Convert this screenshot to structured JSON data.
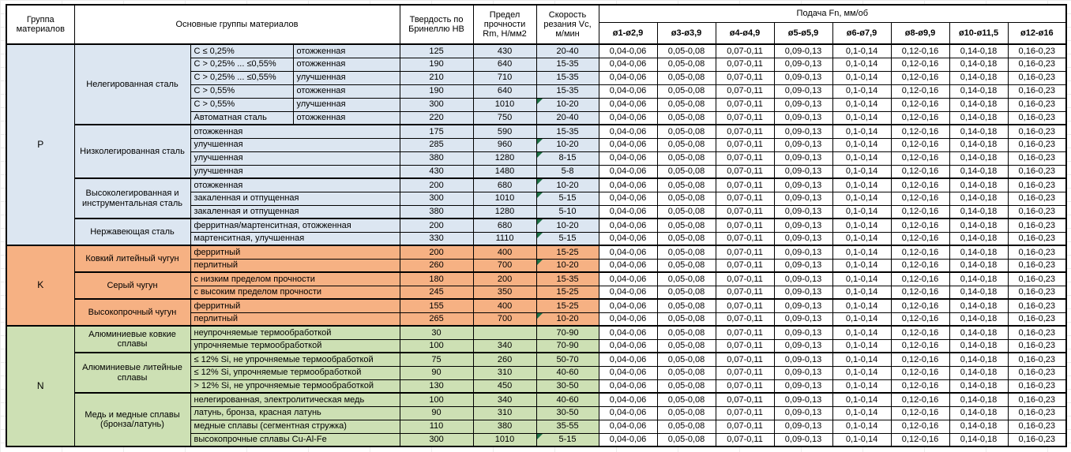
{
  "header": {
    "col_group": "Группа материалов",
    "col_main_groups": "Основные группы материалов",
    "col_hardness": "Твердость по Бринеллю HB",
    "col_strength": "Предел прочности Rm, Н/мм2",
    "col_speed": "Скорость резания Vc, м/мин",
    "feed_title": "Подача Fn, мм/об",
    "feed_columns": [
      "ø1-ø2,9",
      "ø3-ø3,9",
      "ø4-ø4,9",
      "ø5-ø5,9",
      "ø6-ø7,9",
      "ø8-ø9,9",
      "ø10-ø11,5",
      "ø12-ø16"
    ]
  },
  "feed_values": [
    "0,04-0,06",
    "0,05-0,08",
    "0,07-0,11",
    "0,09-0,13",
    "0,1-0,14",
    "0,12-0,16",
    "0,14-0,18",
    "0,16-0,23"
  ],
  "colors": {
    "section_p": "#dce6f1",
    "section_k": "#f6b183",
    "section_n": "#cde0b4",
    "note_indicator": "#1e7145",
    "grid_border": "#000000"
  },
  "sections": [
    {
      "code": "P",
      "color": "#dce6f1",
      "groups": [
        {
          "name": "Нелегированная сталь",
          "rows": [
            {
              "sub1": "C ≤ 0,25%",
              "sub2": "отожженная",
              "hb": "125",
              "rm": "430",
              "vc": "20-40",
              "note": false
            },
            {
              "sub1": "C > 0,25% ... ≤0,55%",
              "sub2": "отожженная",
              "hb": "190",
              "rm": "640",
              "vc": "15-35",
              "note": false
            },
            {
              "sub1": "C > 0,25% ... ≤0,55%",
              "sub2": "улучшенная",
              "hb": "210",
              "rm": "710",
              "vc": "15-35",
              "note": false
            },
            {
              "sub1": "C > 0,55%",
              "sub2": "отожженная",
              "hb": "190",
              "rm": "640",
              "vc": "15-35",
              "note": false
            },
            {
              "sub1": "C > 0,55%",
              "sub2": "улучшенная",
              "hb": "300",
              "rm": "1010",
              "vc": "10-20",
              "note": true
            },
            {
              "sub1": "Автоматная сталь",
              "sub2": "отожженная",
              "hb": "220",
              "rm": "750",
              "vc": "20-40",
              "note": false
            }
          ]
        },
        {
          "name": "Низколегированная сталь",
          "rows": [
            {
              "sub": "отожженная",
              "hb": "175",
              "rm": "590",
              "vc": "15-35",
              "note": false
            },
            {
              "sub": "улучшенная",
              "hb": "285",
              "rm": "960",
              "vc": "10-20",
              "note": true
            },
            {
              "sub": "улучшенная",
              "hb": "380",
              "rm": "1280",
              "vc": "8-15",
              "note": true
            },
            {
              "sub": "улучшенная",
              "hb": "430",
              "rm": "1480",
              "vc": "5-8",
              "note": false
            }
          ]
        },
        {
          "name": "Высоколегированная и инструментальная сталь",
          "rows": [
            {
              "sub": "отожженная",
              "hb": "200",
              "rm": "680",
              "vc": "10-20",
              "note": true
            },
            {
              "sub": "закаленная и отпущенная",
              "hb": "300",
              "rm": "1010",
              "vc": "5-15",
              "note": true
            },
            {
              "sub": "закаленная и отпущенная",
              "hb": "380",
              "rm": "1280",
              "vc": "5-10",
              "note": false
            }
          ]
        },
        {
          "name": "Нержавеющая сталь",
          "rows": [
            {
              "sub": "ферритная/мартенситная, отожженная",
              "hb": "200",
              "rm": "680",
              "vc": "10-20",
              "note": true
            },
            {
              "sub": "мартенситная, улучшенная",
              "hb": "330",
              "rm": "1110",
              "vc": "5-15",
              "note": true
            }
          ]
        }
      ]
    },
    {
      "code": "K",
      "color": "#f6b183",
      "groups": [
        {
          "name": "Ковкий литейный чугун",
          "rows": [
            {
              "sub": "ферритный",
              "hb": "200",
              "rm": "400",
              "vc": "15-25",
              "note": false
            },
            {
              "sub": "перлитный",
              "hb": "260",
              "rm": "700",
              "vc": "10-20",
              "note": true
            }
          ]
        },
        {
          "name": "Серый чугун",
          "rows": [
            {
              "sub": "с низким пределом прочности",
              "hb": "180",
              "rm": "200",
              "vc": "15-35",
              "note": false
            },
            {
              "sub": "с высоким пределом прочности",
              "hb": "245",
              "rm": "350",
              "vc": "15-25",
              "note": false
            }
          ]
        },
        {
          "name": "Высокопрочный чугун",
          "rows": [
            {
              "sub": "ферритный",
              "hb": "155",
              "rm": "400",
              "vc": "15-25",
              "note": false
            },
            {
              "sub": "перлитный",
              "hb": "265",
              "rm": "700",
              "vc": "10-20",
              "note": true
            }
          ]
        }
      ]
    },
    {
      "code": "N",
      "color": "#cde0b4",
      "groups": [
        {
          "name": "Алюминиевые ковкие сплавы",
          "rows": [
            {
              "sub": "неупрочняемые термообработкой",
              "hb": "30",
              "rm": "",
              "vc": "70-90",
              "note": false
            },
            {
              "sub": "упрочняемые термообработкой",
              "hb": "100",
              "rm": "340",
              "vc": "70-90",
              "note": false
            }
          ]
        },
        {
          "name": "Алюминиевые литейные сплавы",
          "rows": [
            {
              "sub": "≤ 12% Si, не упрочняемые термообработкой",
              "hb": "75",
              "rm": "260",
              "vc": "50-70",
              "note": false
            },
            {
              "sub": "≤ 12% Si, упрочняемые термообработкой",
              "hb": "90",
              "rm": "310",
              "vc": "40-60",
              "note": false
            },
            {
              "sub": "> 12% Si, не упрочняемые термообработкой",
              "hb": "130",
              "rm": "450",
              "vc": "30-50",
              "note": false
            }
          ]
        },
        {
          "name": "Медь и медные сплавы (бронза/латунь)",
          "rows": [
            {
              "sub": "нелегированная, электролитическая медь",
              "hb": "100",
              "rm": "340",
              "vc": "40-60",
              "note": false
            },
            {
              "sub": "латунь, бронза, красная латунь",
              "hb": "90",
              "rm": "310",
              "vc": "30-50",
              "note": false
            },
            {
              "sub": "медные сплавы (сегментная стружка)",
              "hb": "110",
              "rm": "380",
              "vc": "35-55",
              "note": false
            },
            {
              "sub": "высокопрочные сплавы Cu-Al-Fe",
              "hb": "300",
              "rm": "1010",
              "vc": "5-15",
              "note": true
            }
          ]
        }
      ]
    }
  ]
}
